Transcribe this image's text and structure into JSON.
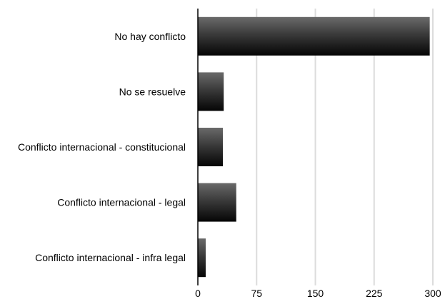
{
  "chart_data": {
    "type": "bar",
    "orientation": "horizontal",
    "title": "",
    "xlabel": "",
    "ylabel": "",
    "categories": [
      "No hay conflicto",
      "No se resuelve",
      "Conflicto internacional - constitucional",
      "Conflicto internacional - legal",
      "Conflicto internacional - infra legal"
    ],
    "values": [
      296,
      33,
      32,
      49,
      10
    ],
    "xlim": [
      0,
      300
    ],
    "xticks": [
      "0",
      "75",
      "150",
      "225",
      "300"
    ],
    "grid": "vertical",
    "legend": "none",
    "colors": {
      "bar_dark": "#0a0a0a",
      "bar_mid": "#5a5a5a",
      "grid": "#dcdcdc",
      "axis": "#000000"
    }
  }
}
